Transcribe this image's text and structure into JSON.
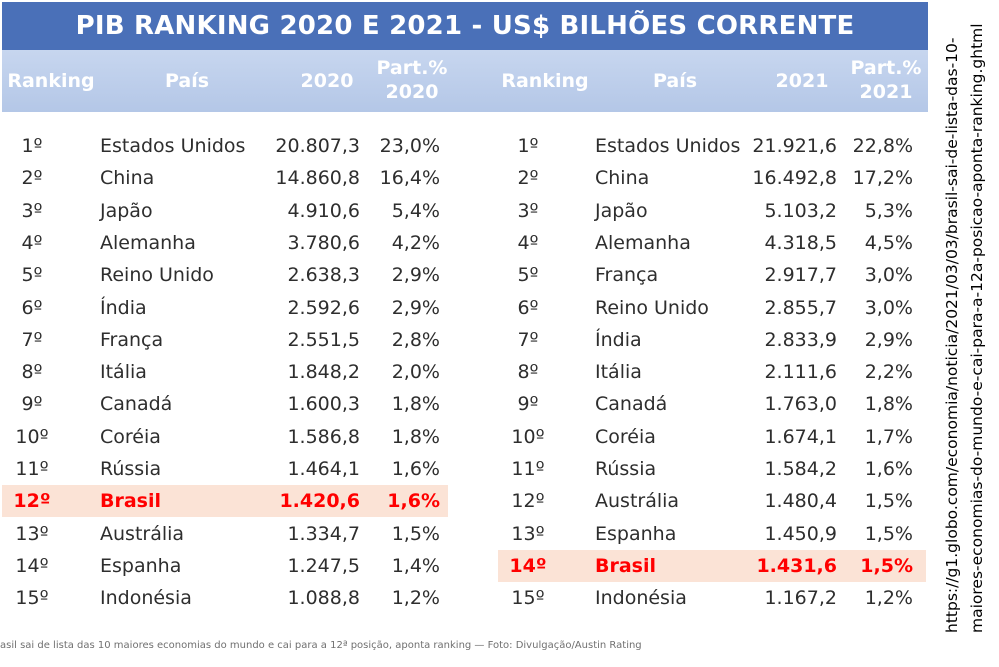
{
  "title": "PIB RANKING 2020 E 2021  -  US$ BILHÕES CORRENTE",
  "headers_2020": {
    "ranking": "Ranking",
    "pais": "País",
    "year": "2020",
    "part_1": "Part.%",
    "part_2": "2020"
  },
  "headers_2021": {
    "ranking": "Ranking",
    "pais": "País",
    "year": "2021",
    "part_1": "Part.%",
    "part_2": "2021"
  },
  "chart_data": [
    {
      "type": "table",
      "title": "PIB RANKING 2020 - US$ BILHÕES CORRENTE",
      "columns": [
        "Ranking",
        "País",
        "2020",
        "Part.% 2020"
      ],
      "highlight_rank": "12º",
      "rows": [
        {
          "rank": "1º",
          "country": "Estados Unidos",
          "value": "20.807,3",
          "share": "23,0%"
        },
        {
          "rank": "2º",
          "country": "China",
          "value": "14.860,8",
          "share": "16,4%"
        },
        {
          "rank": "3º",
          "country": "Japão",
          "value": "4.910,6",
          "share": "5,4%"
        },
        {
          "rank": "4º",
          "country": "Alemanha",
          "value": "3.780,6",
          "share": "4,2%"
        },
        {
          "rank": "5º",
          "country": "Reino Unido",
          "value": "2.638,3",
          "share": "2,9%"
        },
        {
          "rank": "6º",
          "country": "Índia",
          "value": "2.592,6",
          "share": "2,9%"
        },
        {
          "rank": "7º",
          "country": "França",
          "value": "2.551,5",
          "share": "2,8%"
        },
        {
          "rank": "8º",
          "country": "Itália",
          "value": "1.848,2",
          "share": "2,0%"
        },
        {
          "rank": "9º",
          "country": "Canadá",
          "value": "1.600,3",
          "share": "1,8%"
        },
        {
          "rank": "10º",
          "country": "Coréia",
          "value": "1.586,8",
          "share": "1,8%"
        },
        {
          "rank": "11º",
          "country": "Rússia",
          "value": "1.464,1",
          "share": "1,6%"
        },
        {
          "rank": "12º",
          "country": "Brasil",
          "value": "1.420,6",
          "share": "1,6%"
        },
        {
          "rank": "13º",
          "country": "Austrália",
          "value": "1.334,7",
          "share": "1,5%"
        },
        {
          "rank": "14º",
          "country": "Espanha",
          "value": "1.247,5",
          "share": "1,4%"
        },
        {
          "rank": "15º",
          "country": "Indonésia",
          "value": "1.088,8",
          "share": "1,2%"
        }
      ]
    },
    {
      "type": "table",
      "title": "PIB RANKING 2021 - US$ BILHÕES CORRENTE",
      "columns": [
        "Ranking",
        "País",
        "2021",
        "Part.% 2021"
      ],
      "highlight_rank": "14º",
      "rows": [
        {
          "rank": "1º",
          "country": "Estados Unidos",
          "value": "21.921,6",
          "share": "22,8%"
        },
        {
          "rank": "2º",
          "country": "China",
          "value": "16.492,8",
          "share": "17,2%"
        },
        {
          "rank": "3º",
          "country": "Japão",
          "value": "5.103,2",
          "share": "5,3%"
        },
        {
          "rank": "4º",
          "country": "Alemanha",
          "value": "4.318,5",
          "share": "4,5%"
        },
        {
          "rank": "5º",
          "country": "França",
          "value": "2.917,7",
          "share": "3,0%"
        },
        {
          "rank": "6º",
          "country": "Reino Unido",
          "value": "2.855,7",
          "share": "3,0%"
        },
        {
          "rank": "7º",
          "country": "Índia",
          "value": "2.833,9",
          "share": "2,9%"
        },
        {
          "rank": "8º",
          "country": "Itália",
          "value": "2.111,6",
          "share": "2,2%"
        },
        {
          "rank": "9º",
          "country": "Canadá",
          "value": "1.763,0",
          "share": "1,8%"
        },
        {
          "rank": "10º",
          "country": "Coréia",
          "value": "1.674,1",
          "share": "1,7%"
        },
        {
          "rank": "11º",
          "country": "Rússia",
          "value": "1.584,2",
          "share": "1,6%"
        },
        {
          "rank": "12º",
          "country": "Austrália",
          "value": "1.480,4",
          "share": "1,5%"
        },
        {
          "rank": "13º",
          "country": "Espanha",
          "value": "1.450,9",
          "share": "1,5%"
        },
        {
          "rank": "14º",
          "country": "Brasil",
          "value": "1.431,6",
          "share": "1,5%"
        },
        {
          "rank": "15º",
          "country": "Indonésia",
          "value": "1.167,2",
          "share": "1,2%"
        }
      ]
    }
  ],
  "caption": "asil sai de lista das 10 maiores economias do mundo e cai para a 12ª posição, aponta ranking — Foto: Divulgação/Austin Rating",
  "source_url": {
    "line1": "https://g1.globo.com/economia/noticia/2021/03/03/brasil-sai-de-lista-das-10-",
    "line2": "maiores-economias-do-mundo-e-cai-para-a-12a-posicao-aponta-ranking.ghtml"
  },
  "colors": {
    "title_bar": "#4a70b8",
    "header_band": "#b4c7e7",
    "highlight_bg": "#fbe3d6",
    "highlight_text": "#ff0000"
  }
}
